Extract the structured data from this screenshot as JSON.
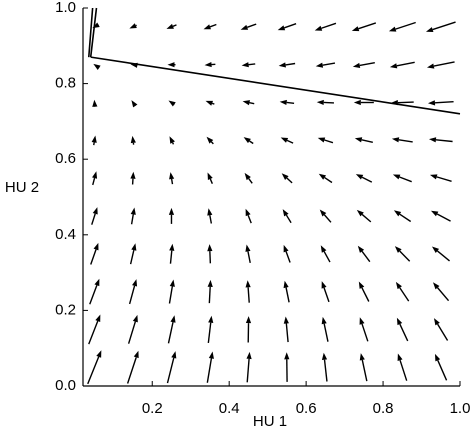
{
  "chart_data": {
    "type": "quiver",
    "xlabel": "HU 1",
    "ylabel": "HU 2",
    "xlim": [
      0.02,
      1.0
    ],
    "ylim": [
      0,
      1.0
    ],
    "xticks": [
      0.2,
      0.4,
      0.6,
      0.8,
      {
        "value": 1.0,
        "label": "1.0"
      }
    ],
    "yticks": [
      {
        "value": 0,
        "label": "0.0"
      },
      0.2,
      0.4,
      0.6,
      0.8,
      {
        "value": 1.0,
        "label": "1.0"
      }
    ],
    "color": "#000000",
    "x": [
      0.05,
      0.15,
      0.25,
      0.35,
      0.45,
      0.55,
      0.65,
      0.75,
      0.85,
      0.95
    ],
    "y": [
      0.05,
      0.15,
      0.25,
      0.35,
      0.45,
      0.55,
      0.65,
      0.75,
      0.85,
      0.95
    ],
    "u": [
      [
        0.17,
        0.135,
        0.1,
        0.065,
        0.03,
        -0.005,
        -0.04,
        -0.075,
        -0.11,
        -0.145
      ],
      [
        0.145,
        0.11,
        0.075,
        0.04,
        0.005,
        -0.03,
        -0.065,
        -0.1,
        -0.135,
        -0.17
      ],
      [
        0.12,
        0.085,
        0.05,
        0.015,
        -0.02,
        -0.055,
        -0.09,
        -0.125,
        -0.16,
        -0.195
      ],
      [
        0.095,
        0.06,
        0.025,
        -0.01,
        -0.045,
        -0.08,
        -0.115,
        -0.15,
        -0.185,
        -0.22
      ],
      [
        0.07,
        0.035,
        0,
        -0.035,
        -0.07,
        -0.105,
        -0.14,
        -0.175,
        -0.21,
        -0.245
      ],
      [
        0.045,
        0.01,
        -0.025,
        -0.06,
        -0.095,
        -0.13,
        -0.165,
        -0.2,
        -0.235,
        -0.27
      ],
      [
        0.02,
        -0.015,
        -0.05,
        -0.085,
        -0.12,
        -0.155,
        -0.19,
        -0.225,
        -0.26,
        -0.295
      ],
      [
        -0.005,
        -0.04,
        -0.075,
        -0.11,
        -0.145,
        -0.18,
        -0.215,
        -0.25,
        -0.285,
        -0.32
      ],
      [
        -0.03,
        -0.065,
        -0.1,
        -0.135,
        -0.17,
        -0.205,
        -0.24,
        -0.275,
        -0.31,
        -0.345
      ],
      [
        -0.055,
        -0.09,
        -0.125,
        -0.16,
        -0.195,
        -0.23,
        -0.265,
        -0.3,
        -0.335,
        -0.37
      ]
    ],
    "v": [
      [
        0.42,
        0.41,
        0.4,
        0.39,
        0.38,
        0.37,
        0.36,
        0.35,
        0.34,
        0.33
      ],
      [
        0.37,
        0.36,
        0.35,
        0.34,
        0.33,
        0.32,
        0.31,
        0.3,
        0.29,
        0.28
      ],
      [
        0.32,
        0.31,
        0.3,
        0.29,
        0.28,
        0.27,
        0.26,
        0.25,
        0.24,
        0.23
      ],
      [
        0.27,
        0.26,
        0.25,
        0.24,
        0.23,
        0.22,
        0.21,
        0.2,
        0.19,
        0.18
      ],
      [
        0.22,
        0.21,
        0.2,
        0.19,
        0.18,
        0.17,
        0.16,
        0.15,
        0.14,
        0.13
      ],
      [
        0.17,
        0.16,
        0.15,
        0.14,
        0.13,
        0.12,
        0.11,
        0.1,
        0.09,
        0.08
      ],
      [
        0.12,
        0.11,
        0.1,
        0.09,
        0.08,
        0.07,
        0.06,
        0.05,
        0.04,
        0.03
      ],
      [
        0.07,
        0.06,
        0.05,
        0.04,
        0.03,
        0.02,
        0.01,
        0,
        -0.01,
        -0.02
      ],
      [
        0.02,
        0.01,
        0,
        -0.01,
        -0.02,
        -0.03,
        -0.04,
        -0.05,
        -0.06,
        -0.07
      ],
      [
        -0.03,
        -0.04,
        -0.05,
        -0.06,
        -0.07,
        -0.08,
        -0.09,
        -0.1,
        -0.11,
        -0.12
      ]
    ],
    "lines": [
      {
        "x": [
          0.04,
          1.0
        ],
        "y": [
          0.87,
          0.72
        ]
      },
      {
        "x": [
          0.035,
          0.045
        ],
        "y": [
          0.87,
          1.0
        ]
      },
      {
        "x": [
          0.04,
          0.055
        ],
        "y": [
          0.87,
          1.0
        ]
      }
    ]
  }
}
